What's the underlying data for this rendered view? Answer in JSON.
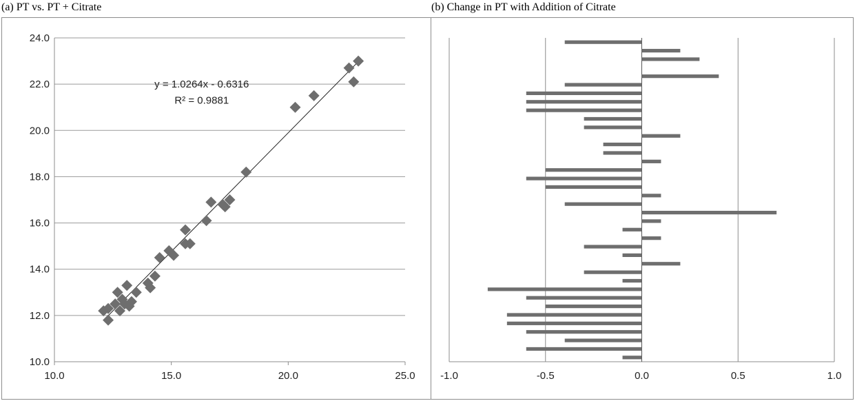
{
  "chart_data": [
    {
      "type": "scatter",
      "title": "(a) PT vs. PT + Citrate",
      "xlim": [
        10,
        25
      ],
      "ylim": [
        10,
        24
      ],
      "xticks": [
        "10.0",
        "15.0",
        "20.0",
        "25.0"
      ],
      "yticks": [
        "10.0",
        "12.0",
        "14.0",
        "16.0",
        "18.0",
        "20.0",
        "22.0",
        "24.0"
      ],
      "grid": "horizontal",
      "marker_color": "#6e6e6e",
      "trendline": {
        "slope": 1.0264,
        "intercept": -0.6316,
        "x_range": [
          12.1,
          22.95
        ]
      },
      "annotation": {
        "equation": "y = 1.0264x - 0.6316",
        "r2_label": "R² = 0.9881"
      },
      "points": [
        [
          12.1,
          12.2
        ],
        [
          12.3,
          12.3
        ],
        [
          12.3,
          11.8
        ],
        [
          12.6,
          12.5
        ],
        [
          12.7,
          13.0
        ],
        [
          12.8,
          12.2
        ],
        [
          12.9,
          12.7
        ],
        [
          13.0,
          12.5
        ],
        [
          13.1,
          13.3
        ],
        [
          13.2,
          12.4
        ],
        [
          13.3,
          12.6
        ],
        [
          13.5,
          13.0
        ],
        [
          14.0,
          13.4
        ],
        [
          14.1,
          13.2
        ],
        [
          14.3,
          13.7
        ],
        [
          14.5,
          14.5
        ],
        [
          14.9,
          14.8
        ],
        [
          15.1,
          14.6
        ],
        [
          15.6,
          15.7
        ],
        [
          15.6,
          15.1
        ],
        [
          15.8,
          15.1
        ],
        [
          16.5,
          16.1
        ],
        [
          16.7,
          16.9
        ],
        [
          17.2,
          16.8
        ],
        [
          17.3,
          16.7
        ],
        [
          17.5,
          17.0
        ],
        [
          18.2,
          18.2
        ],
        [
          20.3,
          21.0
        ],
        [
          21.1,
          21.5
        ],
        [
          22.6,
          22.7
        ],
        [
          22.8,
          22.1
        ],
        [
          23.0,
          23.0
        ]
      ]
    },
    {
      "type": "bar",
      "orientation": "horizontal",
      "title": "(b) Change in PT with Addition of Citrate",
      "xlim": [
        -1.0,
        1.0
      ],
      "xticks": [
        "-1.0",
        "-0.5",
        "0.0",
        "0.5",
        "1.0"
      ],
      "grid": "vertical",
      "bar_color": "#6e6e6e",
      "values": [
        -0.4,
        0.2,
        0.3,
        0.0,
        0.4,
        -0.4,
        -0.6,
        -0.6,
        -0.6,
        -0.3,
        -0.3,
        0.2,
        -0.2,
        -0.2,
        0.1,
        -0.5,
        -0.6,
        -0.5,
        0.1,
        -0.4,
        0.7,
        0.1,
        -0.1,
        0.1,
        -0.3,
        -0.1,
        0.2,
        -0.3,
        -0.1,
        -0.8,
        -0.6,
        -0.5,
        -0.7,
        -0.7,
        -0.6,
        -0.4,
        -0.6,
        -0.1
      ]
    }
  ]
}
